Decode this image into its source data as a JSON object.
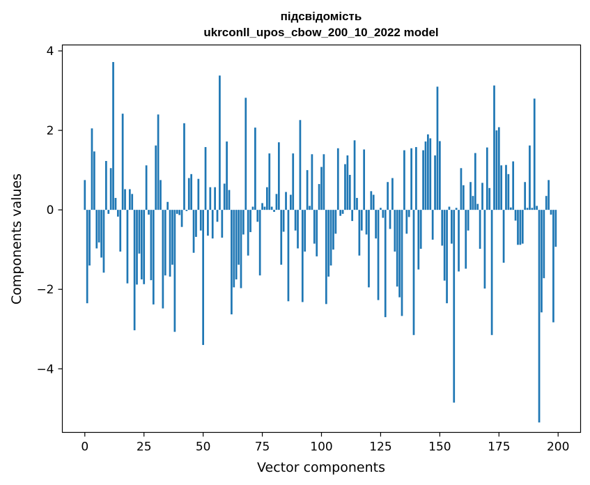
{
  "chart_data": {
    "type": "bar",
    "title_line1": "підсвідомість",
    "title_line2": "ukrconll_upos_cbow_200_10_2022 model",
    "xlabel": "Vector components",
    "ylabel": "Components values",
    "xlim": [
      -9.5,
      209.5
    ],
    "ylim": [
      -5.6,
      4.15
    ],
    "xticks": [
      0,
      25,
      50,
      75,
      100,
      125,
      150,
      175,
      200
    ],
    "yticks": [
      -4,
      -2,
      0,
      2,
      4
    ],
    "ytick_labels": [
      "−4",
      "−2",
      "0",
      "2",
      "4"
    ],
    "xtick_labels": [
      "0",
      "25",
      "50",
      "75",
      "100",
      "125",
      "150",
      "175",
      "200"
    ],
    "bar_color": "#1f77b4",
    "values": [
      0.75,
      -2.35,
      -1.4,
      2.05,
      1.47,
      -0.97,
      -0.82,
      -1.2,
      -1.58,
      1.23,
      -0.1,
      1.05,
      3.72,
      0.3,
      -0.17,
      -1.05,
      2.42,
      0.52,
      -1.85,
      0.52,
      0.4,
      -3.03,
      -1.88,
      -1.1,
      -1.75,
      -1.87,
      1.12,
      -0.12,
      -1.77,
      -2.38,
      1.62,
      2.4,
      0.75,
      -2.48,
      -1.65,
      0.2,
      -1.68,
      -1.38,
      -3.07,
      -0.1,
      -0.13,
      -0.43,
      2.18,
      -0.03,
      0.8,
      0.9,
      -1.08,
      -0.68,
      0.78,
      -0.52,
      -3.4,
      1.58,
      -0.65,
      0.57,
      -0.72,
      0.57,
      -0.3,
      3.38,
      -0.7,
      0.66,
      1.72,
      0.5,
      -2.63,
      -1.95,
      -1.75,
      -1.38,
      -1.97,
      -0.62,
      2.82,
      -1.15,
      -0.56,
      0.08,
      2.07,
      -0.3,
      -1.65,
      0.17,
      0.08,
      0.57,
      1.42,
      0.08,
      -0.05,
      0.4,
      1.7,
      -1.38,
      -0.55,
      0.45,
      -2.3,
      0.38,
      1.42,
      -0.52,
      -0.97,
      2.26,
      -2.32,
      -1.05,
      1.0,
      0.1,
      1.4,
      -0.85,
      -1.17,
      0.65,
      1.08,
      1.4,
      -2.37,
      -1.68,
      -1.4,
      -1.0,
      -0.6,
      1.55,
      -0.15,
      -0.1,
      1.15,
      1.37,
      0.88,
      -0.28,
      1.75,
      0.3,
      -1.15,
      -0.52,
      1.52,
      -0.62,
      -1.95,
      0.47,
      0.38,
      -0.72,
      -2.27,
      0.05,
      -0.2,
      -2.7,
      0.7,
      -0.48,
      0.8,
      -1.05,
      -1.93,
      -2.2,
      -2.67,
      1.5,
      -0.6,
      -0.18,
      1.55,
      -3.15,
      1.58,
      -1.5,
      -0.98,
      1.5,
      1.72,
      1.9,
      1.8,
      -0.75,
      1.37,
      3.1,
      1.73,
      -0.9,
      -1.78,
      -2.35,
      0.08,
      -0.85,
      -4.85,
      0.05,
      -1.55,
      1.05,
      0.62,
      -1.48,
      -0.52,
      0.7,
      0.35,
      1.43,
      0.15,
      -0.98,
      0.68,
      -1.98,
      1.57,
      0.55,
      -3.15,
      3.13,
      2.0,
      2.08,
      1.12,
      -1.33,
      1.13,
      0.9,
      0.06,
      1.22,
      -0.27,
      -0.88,
      -0.88,
      -0.85,
      0.7,
      0.05,
      1.62,
      0.05,
      2.8,
      0.1,
      -5.35,
      -2.58,
      -1.72,
      0.35,
      0.75,
      -0.12,
      -2.83,
      -0.93
    ]
  }
}
